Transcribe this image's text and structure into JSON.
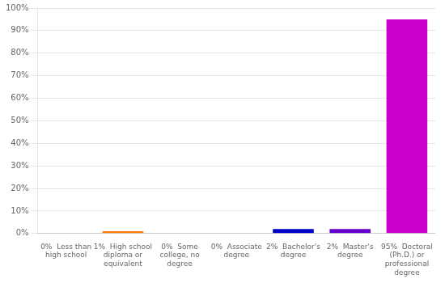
{
  "chart_data": {
    "type": "bar",
    "categories": [
      "0%  Less than\nhigh school",
      "1%  High school\ndiploma or\nequivalent",
      "0%  Some\ncollege, no\ndegree",
      "0%  Associate\ndegree",
      "2%  Bachelor's\ndegree",
      "2%  Master's\ndegree",
      "95%  Doctoral\n(Ph.D.) or\nprofessional\ndegree"
    ],
    "values": [
      0,
      1,
      0,
      0,
      2,
      2,
      95
    ],
    "colors": [
      "#dd0000",
      "#ff7700",
      "#ffee00",
      "#00aa00",
      "#0000cc",
      "#6600cc",
      "#cc00cc"
    ],
    "ylim": [
      0,
      100
    ],
    "yticks": [
      {
        "value": 0,
        "label": "0%"
      },
      {
        "value": 10,
        "label": "10%"
      },
      {
        "value": 20,
        "label": "20%"
      },
      {
        "value": 30,
        "label": "30%"
      },
      {
        "value": 40,
        "label": "40%"
      },
      {
        "value": 50,
        "label": "50%"
      },
      {
        "value": 60,
        "label": "60%"
      },
      {
        "value": 70,
        "label": "70%"
      },
      {
        "value": 80,
        "label": "80%"
      },
      {
        "value": 90,
        "label": "90%"
      },
      {
        "value": 100,
        "label": "100%"
      }
    ],
    "grid": true
  }
}
